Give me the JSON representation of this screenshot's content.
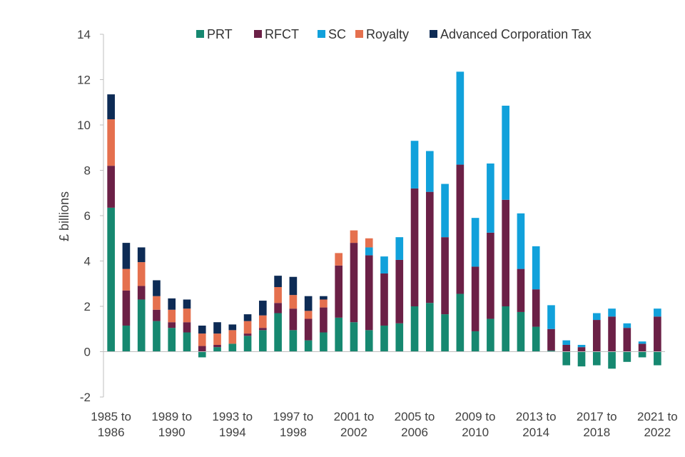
{
  "chart_data": {
    "type": "bar",
    "stacked": true,
    "title": "",
    "xlabel": "",
    "ylabel": "£ billions",
    "ylim": [
      -2,
      14
    ],
    "yticks": [
      -2,
      0,
      2,
      4,
      6,
      8,
      10,
      12,
      14
    ],
    "grid": false,
    "legend_position": "top",
    "categories": [
      "1985 to 1986",
      "1986 to 1987",
      "1987 to 1988",
      "1988 to 1989",
      "1989 to 1990",
      "1990 to 1991",
      "1991 to 1992",
      "1992 to 1993",
      "1993 to 1994",
      "1994 to 1995",
      "1995 to 1996",
      "1996 to 1997",
      "1997 to 1998",
      "1998 to 1999",
      "1999 to 2000",
      "2000 to 2001",
      "2001 to 2002",
      "2002 to 2003",
      "2003 to 2004",
      "2004 to 2005",
      "2005 to 2006",
      "2006 to 2007",
      "2007 to 2008",
      "2008 to 2009",
      "2009 to 2010",
      "2010 to 2011",
      "2011 to 2012",
      "2012 to 2013",
      "2013 to 2014",
      "2014 to 2015",
      "2015 to 2016",
      "2016 to 2017",
      "2017 to 2018",
      "2018 to 2019",
      "2019 to 2020",
      "2020 to 2021",
      "2021 to 2022"
    ],
    "x_tick_labels": [
      {
        "index": 0,
        "line1": "1985 to",
        "line2": "1986"
      },
      {
        "index": 4,
        "line1": "1989 to",
        "line2": "1990"
      },
      {
        "index": 8,
        "line1": "1993 to",
        "line2": "1994"
      },
      {
        "index": 12,
        "line1": "1997 to",
        "line2": "1998"
      },
      {
        "index": 16,
        "line1": "2001 to",
        "line2": "2002"
      },
      {
        "index": 20,
        "line1": "2005 to",
        "line2": "2006"
      },
      {
        "index": 24,
        "line1": "2009 to",
        "line2": "2010"
      },
      {
        "index": 28,
        "line1": "2013 to",
        "line2": "2014"
      },
      {
        "index": 32,
        "line1": "2017 to",
        "line2": "2018"
      },
      {
        "index": 36,
        "line1": "2021 to",
        "line2": "2022"
      }
    ],
    "series": [
      {
        "name": "PRT",
        "color": "#168870",
        "values": [
          6.35,
          1.15,
          2.3,
          1.35,
          1.05,
          0.85,
          -0.25,
          0.2,
          0.35,
          0.7,
          0.95,
          1.7,
          0.95,
          0.5,
          0.85,
          1.5,
          1.3,
          0.95,
          1.15,
          1.25,
          2.0,
          2.15,
          1.65,
          2.55,
          0.9,
          1.45,
          2.0,
          1.75,
          1.1,
          0.05,
          -0.6,
          -0.65,
          -0.6,
          -0.75,
          -0.45,
          -0.25,
          -0.6
        ]
      },
      {
        "name": "RFCT",
        "color": "#6B2046",
        "values": [
          1.85,
          1.55,
          0.6,
          0.5,
          0.25,
          0.45,
          0.25,
          0.1,
          0.0,
          0.1,
          0.1,
          0.45,
          0.95,
          0.95,
          1.1,
          2.3,
          3.5,
          3.3,
          2.3,
          2.8,
          5.2,
          4.9,
          3.4,
          5.7,
          2.85,
          3.8,
          4.7,
          1.9,
          1.65,
          0.95,
          0.3,
          0.2,
          1.4,
          1.55,
          1.05,
          0.35,
          1.55
        ]
      },
      {
        "name": "SC",
        "color": "#11A1DB",
        "values": [
          0,
          0,
          0,
          0,
          0,
          0,
          0,
          0,
          0,
          0,
          0,
          0,
          0,
          0,
          0,
          0,
          0,
          0.35,
          0.75,
          1.0,
          2.1,
          1.8,
          2.35,
          4.1,
          2.15,
          3.05,
          4.15,
          2.45,
          1.9,
          1.05,
          0.2,
          0.1,
          0.3,
          0.35,
          0.2,
          0.1,
          0.35
        ]
      },
      {
        "name": "Royalty",
        "color": "#E5704E",
        "values": [
          2.05,
          0.95,
          1.05,
          0.6,
          0.55,
          0.6,
          0.55,
          0.5,
          0.6,
          0.55,
          0.55,
          0.7,
          0.6,
          0.35,
          0.35,
          0.55,
          0.55,
          0.4,
          0,
          0,
          0,
          0,
          0,
          0,
          0,
          0,
          0,
          0,
          0,
          0,
          0,
          0,
          0,
          0,
          0,
          0,
          0
        ]
      },
      {
        "name": "Advanced Corporation Tax",
        "color": "#0D2B55",
        "values": [
          1.1,
          1.15,
          0.65,
          0.7,
          0.5,
          0.4,
          0.35,
          0.5,
          0.25,
          0.3,
          0.65,
          0.5,
          0.8,
          0.65,
          0.15,
          0,
          0,
          0,
          0,
          0,
          0,
          0,
          0,
          0,
          0,
          0,
          0,
          0,
          0,
          0,
          0,
          0,
          0,
          0,
          0,
          0,
          0
        ]
      }
    ]
  }
}
